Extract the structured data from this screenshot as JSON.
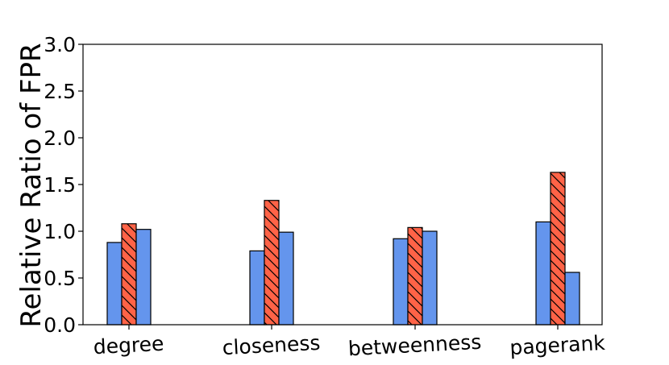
{
  "chart_data": {
    "type": "bar",
    "title": "",
    "xlabel": "",
    "ylabel": "Relative Ratio of FPR",
    "ylim": [
      0,
      3.0
    ],
    "yticks": [
      "0.0",
      "0.5",
      "1.0",
      "1.5",
      "2.0",
      "2.5",
      "3.0"
    ],
    "categories": [
      "degree",
      "closeness",
      "betweenness",
      "pagerank"
    ],
    "series": [
      {
        "name": "series-1",
        "color": "#6495ED",
        "hatch": "none",
        "values": [
          0.88,
          0.79,
          0.92,
          1.1
        ]
      },
      {
        "name": "series-2",
        "color": "#FF6347",
        "hatch": "diagonal",
        "values": [
          1.08,
          1.33,
          1.04,
          1.63
        ]
      },
      {
        "name": "series-3",
        "color": "#6495ED",
        "hatch": "none",
        "values": [
          1.02,
          0.99,
          1.0,
          0.56
        ]
      }
    ],
    "legend": "none",
    "grid": false
  }
}
